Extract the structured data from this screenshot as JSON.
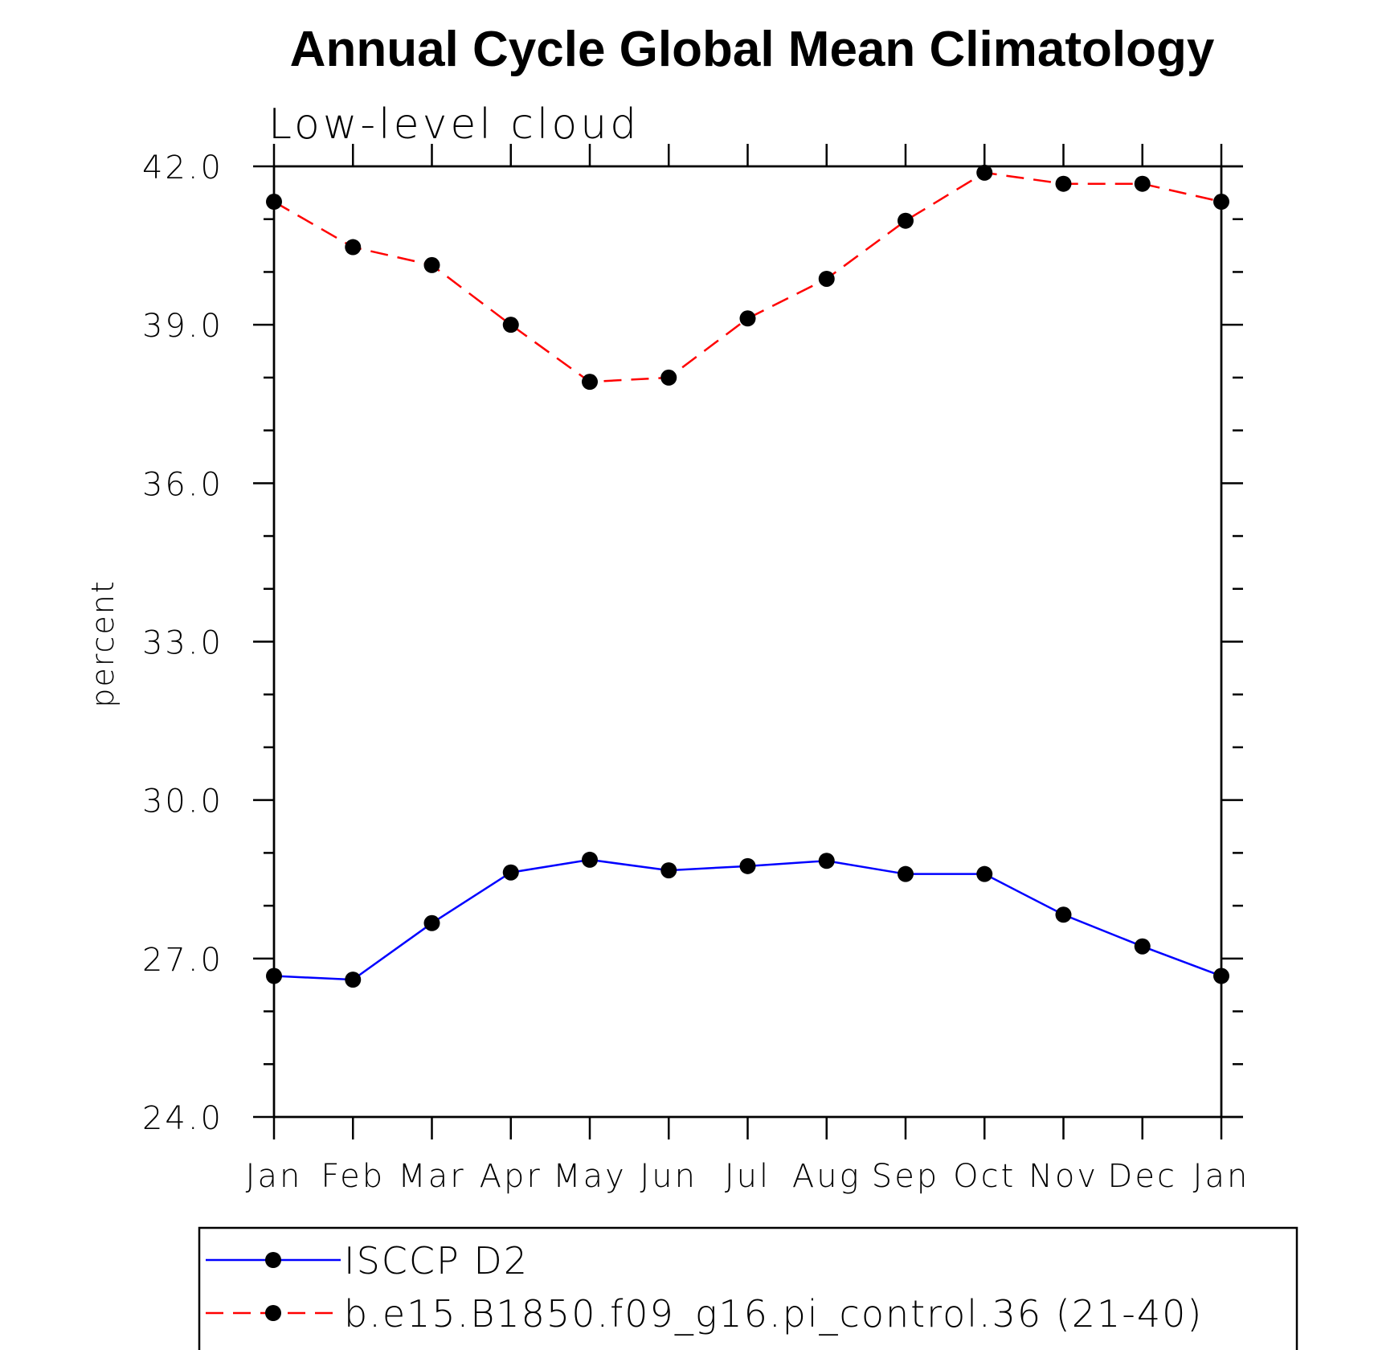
{
  "chart_data": {
    "type": "line",
    "title": "Annual Cycle Global Mean Climatology",
    "subtitle": "Low-level cloud",
    "ylabel": "percent",
    "xlabel": "",
    "ylim": [
      24.0,
      42.0
    ],
    "yticks": [
      "24.0",
      "27.0",
      "30.0",
      "33.0",
      "36.0",
      "39.0",
      "42.0"
    ],
    "ytick_values": [
      24,
      27,
      30,
      33,
      36,
      39,
      42
    ],
    "categories": [
      "Jan",
      "Feb",
      "Mar",
      "Apr",
      "May",
      "Jun",
      "Jul",
      "Aug",
      "Sep",
      "Oct",
      "Nov",
      "Dec",
      "Jan"
    ],
    "grid": false,
    "legend_position": "bottom",
    "series": [
      {
        "name": "ISCCP D2",
        "color": "#0000ff",
        "line_style": "solid",
        "marker": "filled-circle",
        "values": [
          26.67,
          26.6,
          27.67,
          28.63,
          28.87,
          28.67,
          28.75,
          28.85,
          28.6,
          28.6,
          27.83,
          27.23,
          26.67
        ]
      },
      {
        "name": "b.e15.B1850.f09_g16.pi_control.36 (21-40)",
        "color": "#ff0000",
        "line_style": "dashed",
        "marker": "filled-circle",
        "values": [
          41.33,
          40.47,
          40.13,
          39.0,
          37.92,
          38.0,
          39.12,
          39.87,
          40.97,
          41.88,
          41.67,
          41.67,
          41.33
        ]
      }
    ]
  }
}
